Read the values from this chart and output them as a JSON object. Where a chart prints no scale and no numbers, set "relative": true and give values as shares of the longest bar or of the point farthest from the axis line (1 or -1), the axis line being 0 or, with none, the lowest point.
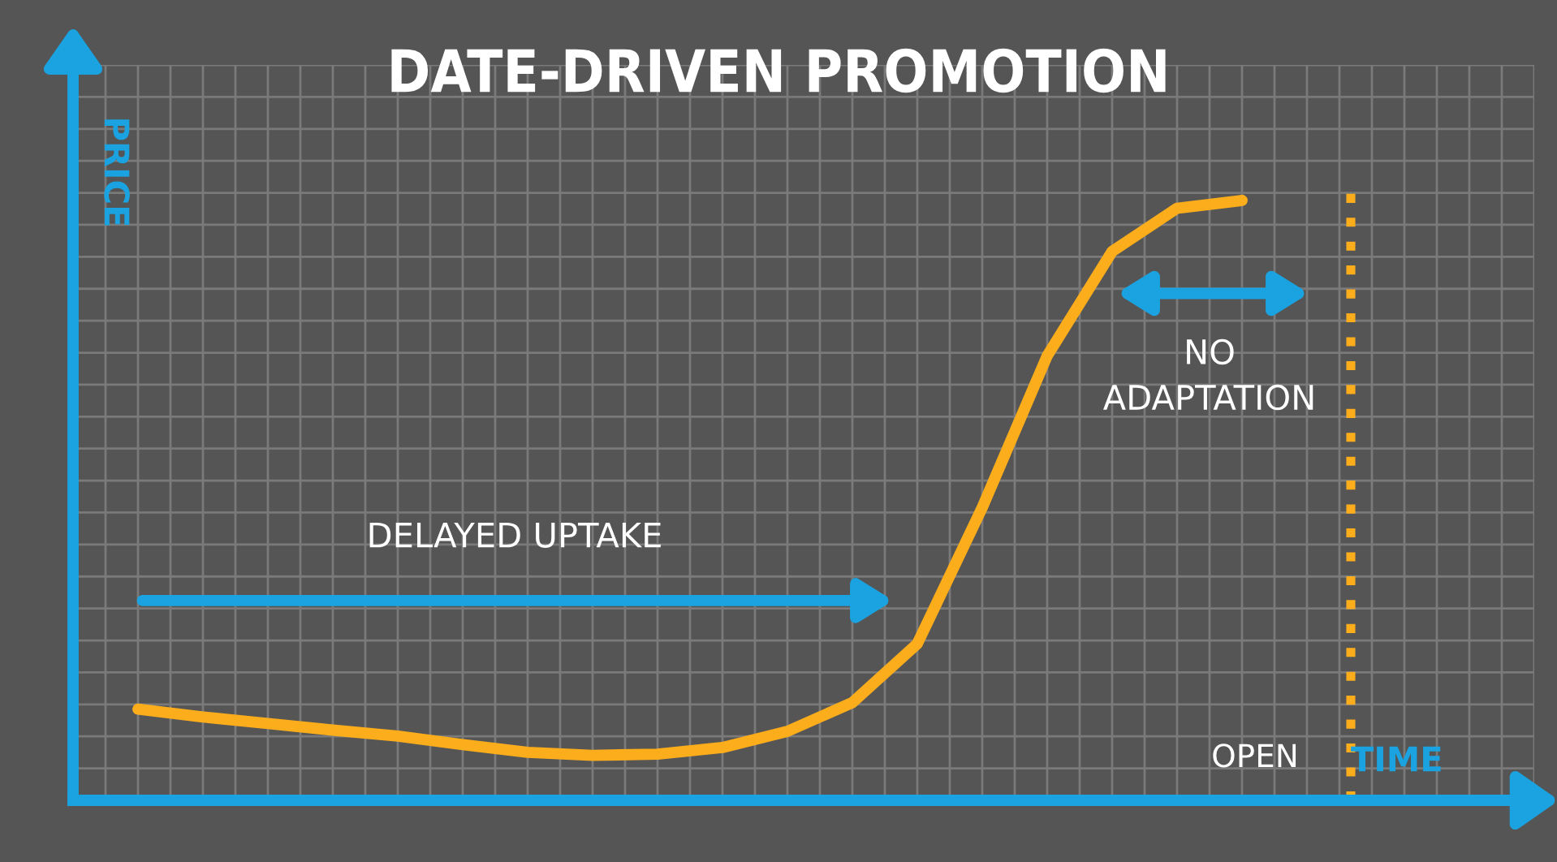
{
  "chart_data": {
    "type": "line",
    "title": "DATE-DRIVEN PROMOTION",
    "xlabel": "TIME",
    "ylabel": "PRICE",
    "relative": true,
    "categories": [
      null,
      null,
      null,
      null,
      null,
      null,
      null,
      null,
      null,
      null,
      null,
      null,
      null,
      null,
      null,
      null,
      null,
      null,
      null,
      null
    ],
    "series": [
      {
        "color": "#fbad1c",
        "values": [
          0.152,
          0.139,
          0.128,
          0.117,
          0.107,
          0.093,
          0.08,
          0.075,
          0.077,
          0.088,
          0.115,
          0.163,
          0.261,
          0.488,
          0.741,
          0.915,
          0.987,
          1.0,
          null,
          null
        ]
      }
    ],
    "annotations": [
      "DELAYED UPTAKE",
      "NO ADAPTATION",
      "OPEN"
    ],
    "grid": true,
    "tick_labels": false,
    "legend": false,
    "marker": "none",
    "line_style": "solid"
  }
}
